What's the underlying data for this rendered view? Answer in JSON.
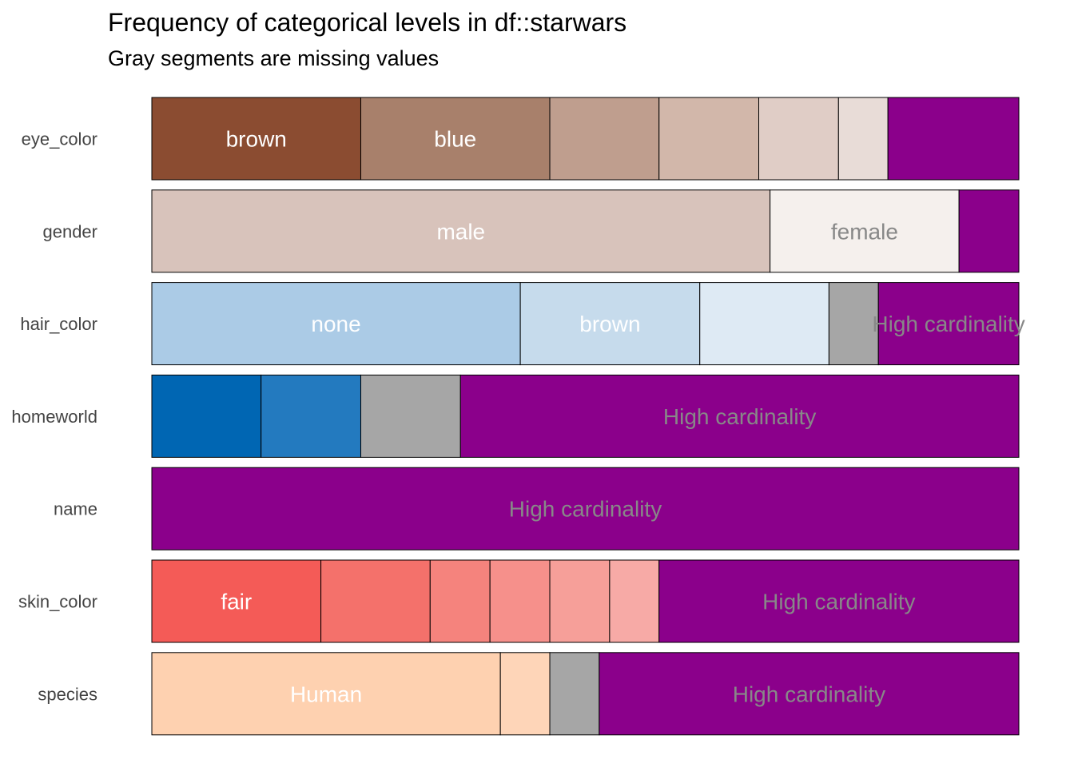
{
  "colors": {
    "missing": "#a6a6a6",
    "high_cardinality": "#8b008b",
    "label_light": "#ffffff",
    "label_dark": "#888888",
    "outline": "#000000"
  },
  "chart_data": {
    "type": "bar",
    "orientation": "horizontal",
    "stacked": "proportion",
    "title": "Frequency of categorical levels in df::starwars",
    "subtitle": "Gray segments are missing values",
    "xlim": [
      0,
      1
    ],
    "grid": false,
    "legend": "none",
    "categories": [
      "eye_color",
      "gender",
      "hair_color",
      "homeworld",
      "name",
      "skin_color",
      "species"
    ],
    "rows": [
      {
        "name": "eye_color",
        "segments": [
          {
            "label": "brown",
            "value": 0.241,
            "color": "#8b4c31",
            "label_color": "#ffffff"
          },
          {
            "label": "blue",
            "value": 0.218,
            "color": "#a8806b",
            "label_color": "#ffffff"
          },
          {
            "label": "",
            "value": 0.126,
            "color": "#bf9e8e"
          },
          {
            "label": "",
            "value": 0.115,
            "color": "#d2b7aa"
          },
          {
            "label": "",
            "value": 0.092,
            "color": "#e0cdc6"
          },
          {
            "label": "",
            "value": 0.057,
            "color": "#e8dcd7"
          },
          {
            "label": "",
            "value": 0.151,
            "color": "#8b008b"
          }
        ]
      },
      {
        "name": "gender",
        "segments": [
          {
            "label": "male",
            "value": 0.713,
            "color": "#d8c3bb",
            "label_color": "#ffffff"
          },
          {
            "label": "female",
            "value": 0.218,
            "color": "#f5f0ed",
            "label_color": "#888888"
          },
          {
            "label": "",
            "value": 0.069,
            "color": "#8b008b"
          }
        ]
      },
      {
        "name": "hair_color",
        "segments": [
          {
            "label": "none",
            "value": 0.425,
            "color": "#abcbe6",
            "label_color": "#ffffff"
          },
          {
            "label": "brown",
            "value": 0.207,
            "color": "#c6dbec",
            "label_color": "#ffffff"
          },
          {
            "label": "",
            "value": 0.149,
            "color": "#deeaf4"
          },
          {
            "label": "",
            "value": 0.057,
            "color": "#a6a6a6"
          },
          {
            "label": "High cardinality",
            "value": 0.162,
            "color": "#8b008b",
            "label_color": "#888888"
          }
        ]
      },
      {
        "name": "homeworld",
        "segments": [
          {
            "label": "",
            "value": 0.126,
            "color": "#0066b3"
          },
          {
            "label": "",
            "value": 0.115,
            "color": "#237abf"
          },
          {
            "label": "",
            "value": 0.115,
            "color": "#a6a6a6"
          },
          {
            "label": "High cardinality",
            "value": 0.644,
            "color": "#8b008b",
            "label_color": "#888888"
          }
        ]
      },
      {
        "name": "name",
        "segments": [
          {
            "label": "High cardinality",
            "value": 1.0,
            "color": "#8b008b",
            "label_color": "#888888"
          }
        ]
      },
      {
        "name": "skin_color",
        "segments": [
          {
            "label": "fair",
            "value": 0.195,
            "color": "#f45b57",
            "label_color": "#ffffff"
          },
          {
            "label": "",
            "value": 0.126,
            "color": "#f4716b"
          },
          {
            "label": "",
            "value": 0.069,
            "color": "#f5837d"
          },
          {
            "label": "",
            "value": 0.069,
            "color": "#f6908b"
          },
          {
            "label": "",
            "value": 0.069,
            "color": "#f69f99"
          },
          {
            "label": "",
            "value": 0.057,
            "color": "#f7aaa6"
          },
          {
            "label": "High cardinality",
            "value": 0.415,
            "color": "#8b008b",
            "label_color": "#888888"
          }
        ]
      },
      {
        "name": "species",
        "segments": [
          {
            "label": "Human",
            "value": 0.402,
            "color": "#fed1b0",
            "label_color": "#ffffff"
          },
          {
            "label": "",
            "value": 0.057,
            "color": "#fed5b8"
          },
          {
            "label": "",
            "value": 0.057,
            "color": "#a6a6a6"
          },
          {
            "label": "High cardinality",
            "value": 0.484,
            "color": "#8b008b",
            "label_color": "#888888"
          }
        ]
      }
    ]
  }
}
